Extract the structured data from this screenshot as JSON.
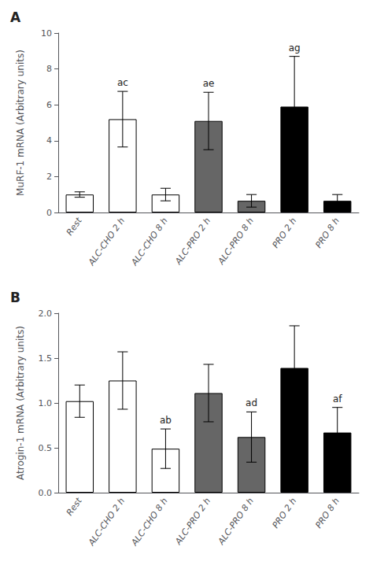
{
  "chart_data": [
    {
      "type": "bar",
      "title": "A",
      "ylabel": "MuRF-1 mRNA (Arbitrary units)",
      "categories": [
        "Rest",
        "ALC-CHO 2 h",
        "ALC-CHO 8 h",
        "ALC-PRO 2 h",
        "ALC-PRO 8 h",
        "PRO 2 h",
        "PRO 8 h"
      ],
      "values": [
        1.0,
        5.2,
        1.0,
        5.1,
        0.65,
        5.9,
        0.65
      ],
      "errors": [
        0.15,
        1.55,
        0.35,
        1.6,
        0.35,
        2.8,
        0.35
      ],
      "colors": [
        "white",
        "white",
        "white",
        "#666666",
        "#666666",
        "black",
        "black"
      ],
      "annotations": [
        {
          "category": "ALC-CHO 2 h",
          "text": "ac"
        },
        {
          "category": "ALC-PRO 2 h",
          "text": "ae"
        },
        {
          "category": "PRO 2 h",
          "text": "ag"
        }
      ],
      "ylim": [
        0,
        10
      ],
      "yticks": [
        0,
        2,
        4,
        6,
        8,
        10
      ],
      "grid": false
    },
    {
      "type": "bar",
      "title": "B",
      "ylabel": "Atrogin-1 mRNA (Arbitrary units)",
      "categories": [
        "Rest",
        "ALC-CHO 2 h",
        "ALC-CHO 8 h",
        "ALC-PRO 2 h",
        "ALC-PRO 8 h",
        "PRO 2 h",
        "PRO 8 h"
      ],
      "values": [
        1.02,
        1.25,
        0.49,
        1.11,
        0.62,
        1.39,
        0.67
      ],
      "errors": [
        0.18,
        0.32,
        0.22,
        0.32,
        0.28,
        0.47,
        0.28
      ],
      "colors": [
        "white",
        "white",
        "white",
        "#666666",
        "#666666",
        "black",
        "black"
      ],
      "annotations": [
        {
          "category": "ALC-CHO 8 h",
          "text": "ab"
        },
        {
          "category": "ALC-PRO 8 h",
          "text": "ad"
        },
        {
          "category": "PRO 8 h",
          "text": "af"
        }
      ],
      "ylim": [
        0,
        2.0
      ],
      "yticks": [
        {
          "value": 0.0,
          "label": "0.0"
        },
        0.5,
        {
          "value": 1.0,
          "label": "1.0"
        },
        1.5,
        {
          "value": 2.0,
          "label": "2.0"
        }
      ],
      "grid": false
    }
  ]
}
